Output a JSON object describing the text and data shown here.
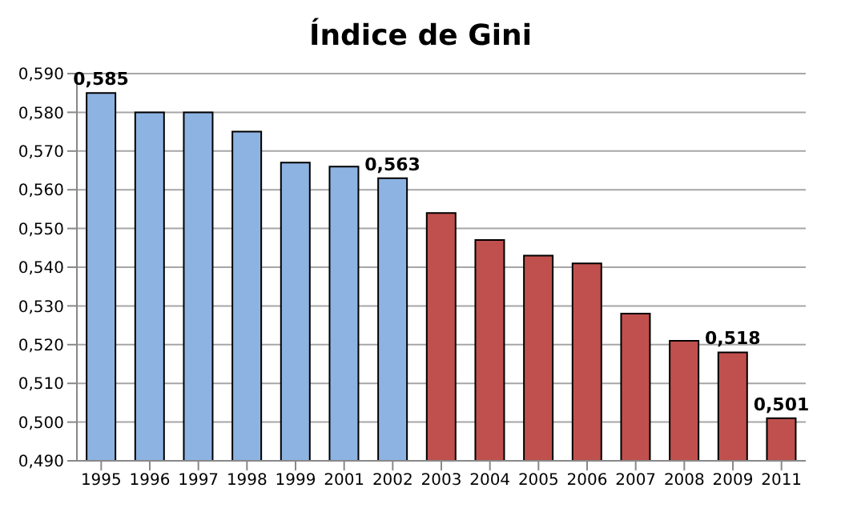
{
  "chart_data": {
    "type": "bar",
    "title": "Índice de Gini",
    "categories": [
      "1995",
      "1996",
      "1997",
      "1998",
      "1999",
      "2001",
      "2002",
      "2003",
      "2004",
      "2005",
      "2006",
      "2007",
      "2008",
      "2009",
      "2011"
    ],
    "values": [
      0.585,
      0.58,
      0.58,
      0.575,
      0.567,
      0.566,
      0.563,
      0.554,
      0.547,
      0.543,
      0.541,
      0.528,
      0.521,
      0.518,
      0.501
    ],
    "colors": [
      "#8db3e2",
      "#8db3e2",
      "#8db3e2",
      "#8db3e2",
      "#8db3e2",
      "#8db3e2",
      "#8db3e2",
      "#c0504d",
      "#c0504d",
      "#c0504d",
      "#c0504d",
      "#c0504d",
      "#c0504d",
      "#c0504d",
      "#c0504d"
    ],
    "value_labels": [
      "0,585",
      null,
      null,
      null,
      null,
      null,
      "0,563",
      null,
      null,
      null,
      null,
      null,
      null,
      "0,518",
      "0,501"
    ],
    "ylim": [
      0.49,
      0.59
    ],
    "yticks": [
      {
        "value": 0.49,
        "label": "0,490"
      },
      {
        "value": 0.5,
        "label": "0,500"
      },
      {
        "value": 0.51,
        "label": "0,510"
      },
      {
        "value": 0.52,
        "label": "0,520"
      },
      {
        "value": 0.53,
        "label": "0,530"
      },
      {
        "value": 0.54,
        "label": "0,540"
      },
      {
        "value": 0.55,
        "label": "0,550"
      },
      {
        "value": 0.56,
        "label": "0,560"
      },
      {
        "value": 0.57,
        "label": "0,570"
      },
      {
        "value": 0.58,
        "label": "0,580"
      },
      {
        "value": 0.59,
        "label": "0,590"
      }
    ],
    "grid": "y"
  }
}
